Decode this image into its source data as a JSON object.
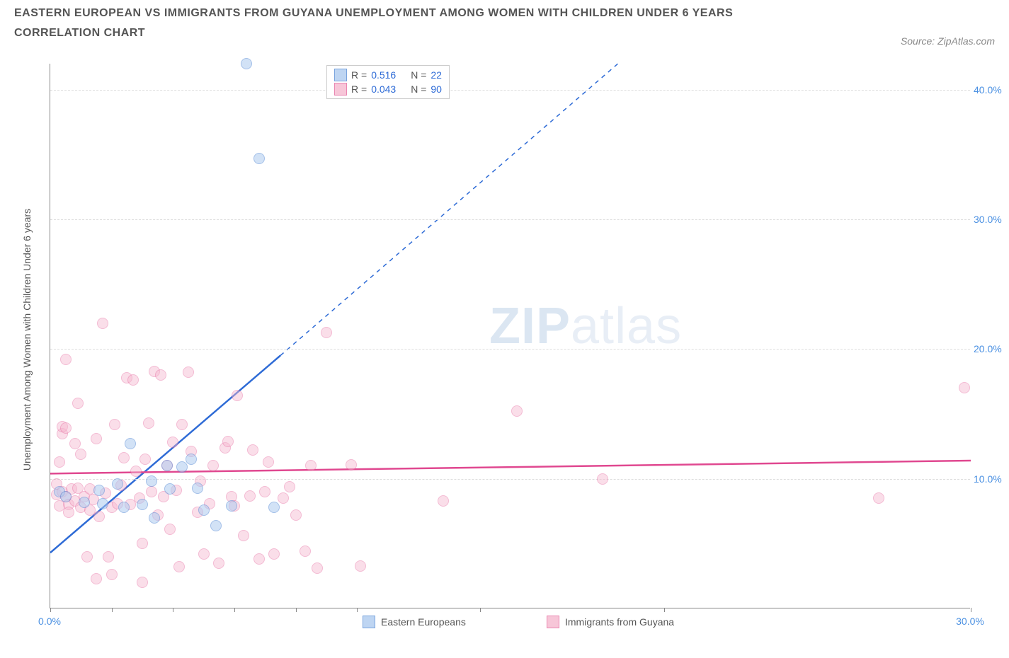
{
  "title_line1": "EASTERN EUROPEAN VS IMMIGRANTS FROM GUYANA UNEMPLOYMENT AMONG WOMEN WITH CHILDREN UNDER 6 YEARS",
  "title_line2": "CORRELATION CHART",
  "source_prefix": "Source: ",
  "source_name": "ZipAtlas.com",
  "ylabel": "Unemployment Among Women with Children Under 6 years",
  "watermark_zip": "ZIP",
  "watermark_atlas": "atlas",
  "chart": {
    "type": "scatter",
    "xlim": [
      0,
      30
    ],
    "ylim": [
      0,
      42
    ],
    "x_ticks": [
      0,
      2,
      4,
      6,
      8,
      10,
      14,
      20,
      30
    ],
    "x_tick_labels": [
      "0.0%",
      "",
      "",
      "",
      "",
      "",
      "",
      "",
      "30.0%"
    ],
    "y_ticks": [
      10,
      20,
      30,
      40
    ],
    "y_tick_labels": [
      "10.0%",
      "20.0%",
      "30.0%",
      "40.0%"
    ],
    "grid_color": "#dddddd",
    "axis_color": "#888888",
    "background_color": "#ffffff",
    "tick_label_color": "#4a90e2",
    "marker_radius": 8,
    "series": [
      {
        "key": "blue",
        "label": "Eastern Europeans",
        "R": "0.516",
        "N": "22",
        "fill": "#aecbf0",
        "stroke": "#5a8ed6",
        "fill_opacity": 0.55,
        "line_color": "#2e6bd6",
        "line_width": 2.5,
        "trend_solid": {
          "x1": 0,
          "y1": 4.3,
          "x2": 7.5,
          "y2": 19.5
        },
        "trend_dash": {
          "x1": 7.5,
          "y1": 19.5,
          "x2": 18.5,
          "y2": 42
        },
        "points": [
          [
            0.3,
            9.0
          ],
          [
            0.5,
            8.6
          ],
          [
            1.1,
            8.2
          ],
          [
            1.6,
            9.1
          ],
          [
            1.7,
            8.1
          ],
          [
            2.2,
            9.6
          ],
          [
            2.4,
            7.8
          ],
          [
            2.6,
            12.7
          ],
          [
            3.0,
            8.0
          ],
          [
            3.3,
            9.8
          ],
          [
            3.4,
            7.0
          ],
          [
            3.8,
            11.0
          ],
          [
            3.9,
            9.2
          ],
          [
            4.3,
            10.9
          ],
          [
            4.6,
            11.5
          ],
          [
            4.8,
            9.3
          ],
          [
            5.0,
            7.6
          ],
          [
            5.4,
            6.4
          ],
          [
            5.9,
            7.9
          ],
          [
            7.3,
            7.8
          ],
          [
            6.4,
            42.0
          ],
          [
            6.8,
            34.7
          ]
        ]
      },
      {
        "key": "pink",
        "label": "Immigrants from Guyana",
        "R": "0.043",
        "N": "90",
        "fill": "#f6b8cf",
        "stroke": "#e66aa0",
        "fill_opacity": 0.45,
        "line_color": "#e04890",
        "line_width": 2.5,
        "trend_solid": {
          "x1": 0,
          "y1": 10.4,
          "x2": 30,
          "y2": 11.4
        },
        "points": [
          [
            0.2,
            8.8
          ],
          [
            0.2,
            9.6
          ],
          [
            0.3,
            11.3
          ],
          [
            0.3,
            7.9
          ],
          [
            0.4,
            13.5
          ],
          [
            0.4,
            14.0
          ],
          [
            0.4,
            9.0
          ],
          [
            0.5,
            13.9
          ],
          [
            0.5,
            8.6
          ],
          [
            0.5,
            19.2
          ],
          [
            0.6,
            8.0
          ],
          [
            0.6,
            7.4
          ],
          [
            0.7,
            9.2
          ],
          [
            0.8,
            12.7
          ],
          [
            0.8,
            8.3
          ],
          [
            0.9,
            15.8
          ],
          [
            0.9,
            9.3
          ],
          [
            1.0,
            7.8
          ],
          [
            1.0,
            11.9
          ],
          [
            1.1,
            8.6
          ],
          [
            1.2,
            4.0
          ],
          [
            1.3,
            7.6
          ],
          [
            1.3,
            9.2
          ],
          [
            1.4,
            8.4
          ],
          [
            1.5,
            13.1
          ],
          [
            1.6,
            7.1
          ],
          [
            1.7,
            22.0
          ],
          [
            1.8,
            8.9
          ],
          [
            1.9,
            4.0
          ],
          [
            2.0,
            7.8
          ],
          [
            2.1,
            14.2
          ],
          [
            2.2,
            8.1
          ],
          [
            2.3,
            9.5
          ],
          [
            2.4,
            11.6
          ],
          [
            2.5,
            17.8
          ],
          [
            2.6,
            8.0
          ],
          [
            2.7,
            17.6
          ],
          [
            2.8,
            10.6
          ],
          [
            2.9,
            8.5
          ],
          [
            3.0,
            5.0
          ],
          [
            3.1,
            11.5
          ],
          [
            3.2,
            14.3
          ],
          [
            3.3,
            9.0
          ],
          [
            3.4,
            18.3
          ],
          [
            3.5,
            7.2
          ],
          [
            3.6,
            18.0
          ],
          [
            3.7,
            8.6
          ],
          [
            3.8,
            11.0
          ],
          [
            3.9,
            6.1
          ],
          [
            4.0,
            12.8
          ],
          [
            4.1,
            9.1
          ],
          [
            4.2,
            3.2
          ],
          [
            4.3,
            14.2
          ],
          [
            4.5,
            18.2
          ],
          [
            4.6,
            12.1
          ],
          [
            4.8,
            7.4
          ],
          [
            4.9,
            9.8
          ],
          [
            5.0,
            4.2
          ],
          [
            5.2,
            8.1
          ],
          [
            5.3,
            11.0
          ],
          [
            5.5,
            3.5
          ],
          [
            5.7,
            12.4
          ],
          [
            5.8,
            12.9
          ],
          [
            5.9,
            8.6
          ],
          [
            6.0,
            7.9
          ],
          [
            6.1,
            16.4
          ],
          [
            6.3,
            5.6
          ],
          [
            6.5,
            8.7
          ],
          [
            6.6,
            12.2
          ],
          [
            6.8,
            3.8
          ],
          [
            7.0,
            9.0
          ],
          [
            7.1,
            11.3
          ],
          [
            7.3,
            4.2
          ],
          [
            7.6,
            8.5
          ],
          [
            7.8,
            9.4
          ],
          [
            8.0,
            7.2
          ],
          [
            8.3,
            4.4
          ],
          [
            8.5,
            11.0
          ],
          [
            8.7,
            3.1
          ],
          [
            9.0,
            21.3
          ],
          [
            9.8,
            11.1
          ],
          [
            10.1,
            3.3
          ],
          [
            12.8,
            8.3
          ],
          [
            15.2,
            15.2
          ],
          [
            18.0,
            10.0
          ],
          [
            27.0,
            8.5
          ],
          [
            29.8,
            17.0
          ],
          [
            2.0,
            2.6
          ],
          [
            3.0,
            2.0
          ],
          [
            1.5,
            2.3
          ]
        ]
      }
    ],
    "legend_top": {
      "R_label": "R =",
      "N_label": "N =",
      "value_color": "#2e6bd6",
      "border_color": "#cccccc"
    }
  }
}
